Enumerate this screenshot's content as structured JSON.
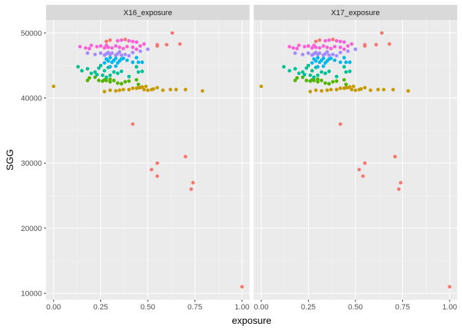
{
  "chart_data": {
    "type": "scatter",
    "xlabel": "exposure",
    "ylabel": "SGG",
    "xlim": [
      -0.04,
      1.04
    ],
    "ylim": [
      9000,
      52000
    ],
    "x_ticks": [
      "0.00",
      "0.25",
      "0.50",
      "0.75",
      "1.00"
    ],
    "x_tick_values": [
      0,
      0.25,
      0.5,
      0.75,
      1.0
    ],
    "y_ticks": [
      "10000",
      "20000",
      "30000",
      "40000",
      "50000"
    ],
    "y_tick_values": [
      10000,
      20000,
      30000,
      40000,
      50000
    ],
    "grid": true,
    "legend": "none",
    "palette": {
      "red": "#F8766D",
      "olive": "#C49A00",
      "green": "#53B400",
      "teal": "#00C094",
      "blue": "#00B6EB",
      "purple": "#A58AFF",
      "pink": "#FB61D7"
    },
    "panels": [
      {
        "title": "X16_exposure",
        "points": {
          "red": [
            [
              1.0,
              11000
            ],
            [
              0.42,
              36000
            ],
            [
              0.52,
              29000
            ],
            [
              0.55,
              28000
            ],
            [
              0.55,
              30000
            ],
            [
              0.7,
              31000
            ],
            [
              0.73,
              26000
            ],
            [
              0.74,
              27000
            ],
            [
              0.63,
              50000
            ],
            [
              0.6,
              48200
            ],
            [
              0.67,
              48300
            ],
            [
              0.55,
              48200
            ],
            [
              0.55,
              48000
            ],
            [
              0.38,
              49000
            ],
            [
              0.28,
              48700
            ],
            [
              0.3,
              48900
            ]
          ],
          "olive": [
            [
              0.0,
              41800
            ],
            [
              0.27,
              41000
            ],
            [
              0.3,
              41200
            ],
            [
              0.33,
              41100
            ],
            [
              0.35,
              41200
            ],
            [
              0.37,
              41300
            ],
            [
              0.4,
              41300
            ],
            [
              0.42,
              41500
            ],
            [
              0.44,
              41500
            ],
            [
              0.46,
              41600
            ],
            [
              0.47,
              41700
            ],
            [
              0.48,
              41300
            ],
            [
              0.5,
              41200
            ],
            [
              0.52,
              41300
            ],
            [
              0.53,
              41400
            ],
            [
              0.55,
              41600
            ],
            [
              0.58,
              41200
            ],
            [
              0.62,
              41300
            ],
            [
              0.65,
              41300
            ],
            [
              0.7,
              41300
            ],
            [
              0.79,
              41100
            ],
            [
              0.49,
              41800
            ],
            [
              0.45,
              41600
            ]
          ],
          "green": [
            [
              0.18,
              42700
            ],
            [
              0.19,
              43100
            ],
            [
              0.22,
              43200
            ],
            [
              0.24,
              42700
            ],
            [
              0.26,
              42600
            ],
            [
              0.27,
              42800
            ],
            [
              0.28,
              42700
            ],
            [
              0.3,
              42500
            ],
            [
              0.32,
              42700
            ],
            [
              0.34,
              42300
            ],
            [
              0.36,
              42200
            ],
            [
              0.3,
              42900
            ],
            [
              0.4,
              42600
            ],
            [
              0.44,
              42800
            ],
            [
              0.45,
              42100
            ],
            [
              0.38,
              42500
            ]
          ],
          "teal": [
            [
              0.13,
              44800
            ],
            [
              0.15,
              44200
            ],
            [
              0.18,
              44500
            ],
            [
              0.2,
              43800
            ],
            [
              0.22,
              44000
            ],
            [
              0.23,
              43600
            ],
            [
              0.24,
              44600
            ],
            [
              0.25,
              45000
            ],
            [
              0.26,
              43500
            ],
            [
              0.27,
              44200
            ],
            [
              0.28,
              43200
            ],
            [
              0.3,
              43500
            ],
            [
              0.32,
              44000
            ],
            [
              0.34,
              43800
            ],
            [
              0.36,
              44100
            ],
            [
              0.4,
              43300
            ],
            [
              0.45,
              44000
            ],
            [
              0.47,
              44100
            ],
            [
              0.44,
              44800
            ],
            [
              0.29,
              44700
            ]
          ],
          "blue": [
            [
              0.27,
              45400
            ],
            [
              0.28,
              46000
            ],
            [
              0.29,
              45700
            ],
            [
              0.3,
              46200
            ],
            [
              0.31,
              45500
            ],
            [
              0.32,
              45800
            ],
            [
              0.33,
              46100
            ],
            [
              0.34,
              45400
            ],
            [
              0.35,
              45700
            ],
            [
              0.3,
              44800
            ],
            [
              0.33,
              44900
            ],
            [
              0.36,
              46000
            ],
            [
              0.39,
              45800
            ],
            [
              0.42,
              45500
            ],
            [
              0.45,
              45500
            ],
            [
              0.47,
              45500
            ],
            [
              0.44,
              46200
            ],
            [
              0.37,
              46100
            ]
          ],
          "purple": [
            [
              0.18,
              46900
            ],
            [
              0.22,
              46700
            ],
            [
              0.25,
              46900
            ],
            [
              0.27,
              46600
            ],
            [
              0.28,
              46800
            ],
            [
              0.3,
              46700
            ],
            [
              0.31,
              46900
            ],
            [
              0.33,
              46600
            ],
            [
              0.34,
              46800
            ],
            [
              0.36,
              46600
            ],
            [
              0.38,
              46700
            ],
            [
              0.4,
              46500
            ],
            [
              0.42,
              47000
            ],
            [
              0.46,
              47200
            ],
            [
              0.5,
              47500
            ],
            [
              0.35,
              47100
            ],
            [
              0.29,
              47000
            ]
          ],
          "pink": [
            [
              0.14,
              47900
            ],
            [
              0.17,
              47700
            ],
            [
              0.19,
              47600
            ],
            [
              0.2,
              48100
            ],
            [
              0.23,
              47900
            ],
            [
              0.25,
              48000
            ],
            [
              0.27,
              47700
            ],
            [
              0.28,
              48100
            ],
            [
              0.29,
              47800
            ],
            [
              0.31,
              47700
            ],
            [
              0.33,
              48000
            ],
            [
              0.35,
              47800
            ],
            [
              0.37,
              47600
            ],
            [
              0.39,
              47900
            ],
            [
              0.42,
              47800
            ],
            [
              0.44,
              47500
            ],
            [
              0.46,
              48000
            ],
            [
              0.48,
              48300
            ],
            [
              0.34,
              48800
            ],
            [
              0.36,
              48900
            ],
            [
              0.4,
              48800
            ],
            [
              0.42,
              48700
            ],
            [
              0.44,
              48600
            ]
          ]
        }
      },
      {
        "title": "X17_exposure",
        "points": {
          "red": [
            [
              1.0,
              11000
            ],
            [
              0.42,
              36000
            ],
            [
              0.52,
              29000
            ],
            [
              0.54,
              28000
            ],
            [
              0.55,
              30000
            ],
            [
              0.71,
              31000
            ],
            [
              0.73,
              26000
            ],
            [
              0.74,
              27000
            ],
            [
              0.64,
              50000
            ],
            [
              0.61,
              48200
            ],
            [
              0.68,
              48300
            ],
            [
              0.55,
              48200
            ],
            [
              0.55,
              48000
            ],
            [
              0.38,
              49000
            ],
            [
              0.29,
              48700
            ],
            [
              0.31,
              48900
            ]
          ],
          "olive": [
            [
              0.0,
              41800
            ],
            [
              0.26,
              41000
            ],
            [
              0.29,
              41200
            ],
            [
              0.32,
              41100
            ],
            [
              0.35,
              41200
            ],
            [
              0.37,
              41300
            ],
            [
              0.4,
              41300
            ],
            [
              0.42,
              41500
            ],
            [
              0.44,
              41500
            ],
            [
              0.46,
              41600
            ],
            [
              0.47,
              41700
            ],
            [
              0.48,
              41300
            ],
            [
              0.5,
              41200
            ],
            [
              0.52,
              41300
            ],
            [
              0.53,
              41400
            ],
            [
              0.55,
              41600
            ],
            [
              0.58,
              41200
            ],
            [
              0.62,
              41300
            ],
            [
              0.65,
              41300
            ],
            [
              0.7,
              41300
            ],
            [
              0.78,
              41100
            ],
            [
              0.49,
              41800
            ],
            [
              0.45,
              41600
            ]
          ],
          "green": [
            [
              0.18,
              42700
            ],
            [
              0.19,
              43100
            ],
            [
              0.22,
              43200
            ],
            [
              0.24,
              42700
            ],
            [
              0.26,
              42600
            ],
            [
              0.27,
              42800
            ],
            [
              0.28,
              42700
            ],
            [
              0.3,
              42500
            ],
            [
              0.32,
              42700
            ],
            [
              0.34,
              42300
            ],
            [
              0.36,
              42200
            ],
            [
              0.3,
              42900
            ],
            [
              0.4,
              42600
            ],
            [
              0.44,
              42800
            ],
            [
              0.45,
              42100
            ],
            [
              0.38,
              42500
            ]
          ],
          "teal": [
            [
              0.12,
              44800
            ],
            [
              0.15,
              44200
            ],
            [
              0.18,
              44500
            ],
            [
              0.2,
              43800
            ],
            [
              0.22,
              44000
            ],
            [
              0.23,
              43600
            ],
            [
              0.24,
              44600
            ],
            [
              0.25,
              45000
            ],
            [
              0.26,
              43500
            ],
            [
              0.27,
              44200
            ],
            [
              0.28,
              43200
            ],
            [
              0.3,
              43500
            ],
            [
              0.32,
              44000
            ],
            [
              0.34,
              43800
            ],
            [
              0.36,
              44100
            ],
            [
              0.4,
              43300
            ],
            [
              0.45,
              44000
            ],
            [
              0.47,
              44100
            ],
            [
              0.44,
              44800
            ],
            [
              0.29,
              44700
            ]
          ],
          "blue": [
            [
              0.27,
              45400
            ],
            [
              0.28,
              46000
            ],
            [
              0.29,
              45700
            ],
            [
              0.3,
              46200
            ],
            [
              0.31,
              45500
            ],
            [
              0.32,
              45800
            ],
            [
              0.33,
              46100
            ],
            [
              0.34,
              45400
            ],
            [
              0.35,
              45700
            ],
            [
              0.3,
              44800
            ],
            [
              0.33,
              44900
            ],
            [
              0.36,
              46000
            ],
            [
              0.39,
              45800
            ],
            [
              0.42,
              45500
            ],
            [
              0.45,
              45500
            ],
            [
              0.47,
              45500
            ],
            [
              0.44,
              46200
            ],
            [
              0.37,
              46100
            ]
          ],
          "purple": [
            [
              0.18,
              46900
            ],
            [
              0.22,
              46700
            ],
            [
              0.25,
              46900
            ],
            [
              0.27,
              46600
            ],
            [
              0.28,
              46800
            ],
            [
              0.3,
              46700
            ],
            [
              0.31,
              46900
            ],
            [
              0.33,
              46600
            ],
            [
              0.34,
              46800
            ],
            [
              0.36,
              46600
            ],
            [
              0.38,
              46700
            ],
            [
              0.4,
              46500
            ],
            [
              0.42,
              47000
            ],
            [
              0.46,
              47200
            ],
            [
              0.5,
              47500
            ],
            [
              0.35,
              47100
            ],
            [
              0.29,
              47000
            ]
          ],
          "pink": [
            [
              0.15,
              47900
            ],
            [
              0.17,
              47700
            ],
            [
              0.19,
              47600
            ],
            [
              0.2,
              48100
            ],
            [
              0.23,
              47900
            ],
            [
              0.25,
              48000
            ],
            [
              0.27,
              47700
            ],
            [
              0.28,
              48100
            ],
            [
              0.29,
              47800
            ],
            [
              0.31,
              47700
            ],
            [
              0.33,
              48000
            ],
            [
              0.35,
              47800
            ],
            [
              0.37,
              47600
            ],
            [
              0.39,
              47900
            ],
            [
              0.42,
              47800
            ],
            [
              0.44,
              47500
            ],
            [
              0.46,
              48000
            ],
            [
              0.48,
              48300
            ],
            [
              0.34,
              48800
            ],
            [
              0.36,
              48900
            ],
            [
              0.4,
              48800
            ],
            [
              0.42,
              48700
            ],
            [
              0.44,
              48600
            ]
          ]
        }
      }
    ]
  }
}
